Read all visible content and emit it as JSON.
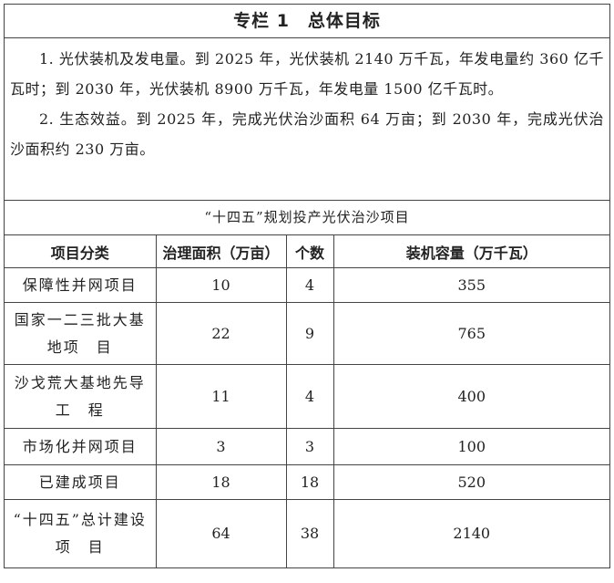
{
  "title": "专栏 1　总体目标",
  "paragraphs": [
    "1. 光伏装机及发电量。到 2025 年，光伏装机 2140 万千瓦，年发电量约 360 亿千瓦时；到 2030 年，光伏装机 8900 万千瓦，年发电量 1500 亿千瓦时。",
    "2. 生态效益。到 2025 年，完成光伏治沙面积 64 万亩；到 2030 年，完成光伏治沙面积约 230 万亩。"
  ],
  "table": {
    "caption": "“十四五”规划投产光伏治沙项目",
    "headers": [
      "项目分类",
      "治理面积（万亩）",
      "个数",
      "装机容量（万千瓦）"
    ],
    "rows": [
      [
        "保障性并网项目",
        "10",
        "4",
        "355"
      ],
      [
        "国家一二三批大基地项　目",
        "22",
        "9",
        "765"
      ],
      [
        "沙戈荒大基地先导工　程",
        "11",
        "4",
        "400"
      ],
      [
        "市场化并网项目",
        "3",
        "3",
        "100"
      ],
      [
        "已建成项目",
        "18",
        "18",
        "520"
      ],
      [
        "“十四五”总计建设项　目",
        "64",
        "38",
        "2140"
      ]
    ]
  }
}
